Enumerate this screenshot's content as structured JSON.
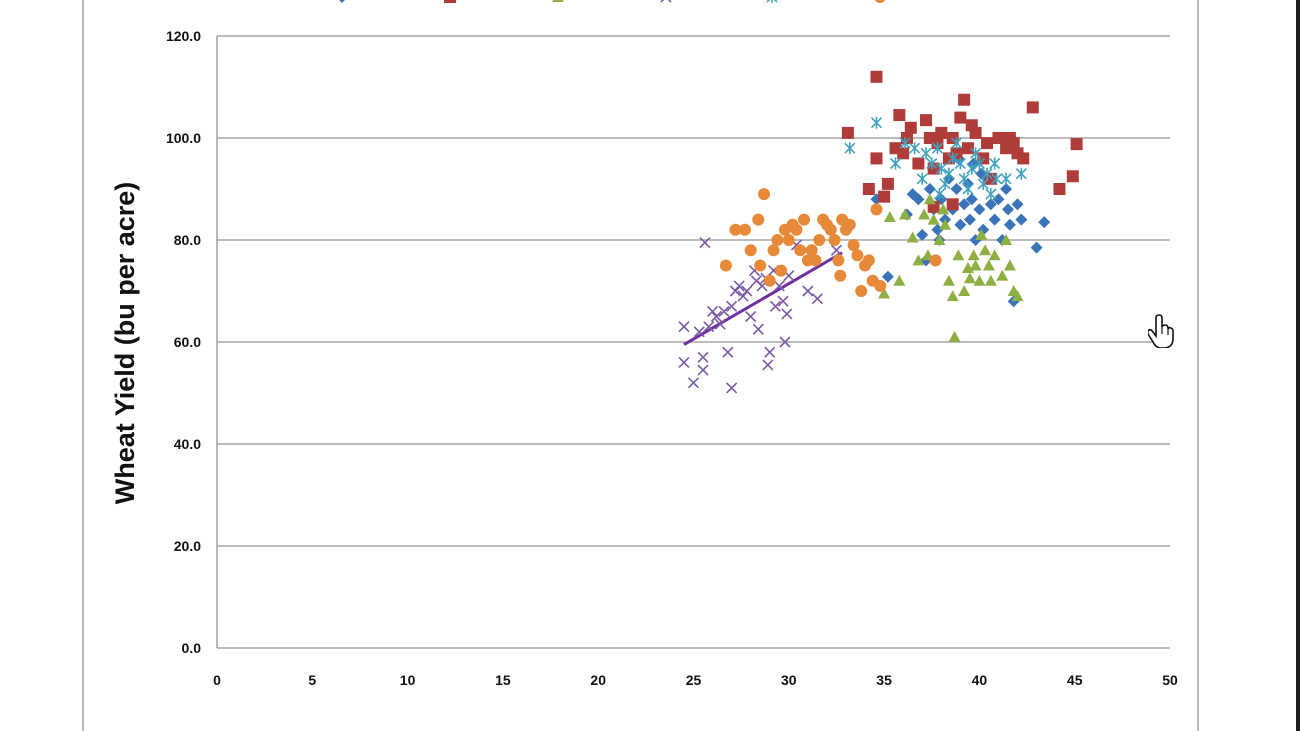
{
  "chart_data": {
    "type": "scatter",
    "xlabel": "",
    "ylabel": "Wheat Yield (bu per acre)",
    "xlim": [
      0,
      50
    ],
    "ylim": [
      0,
      120
    ],
    "x_ticks": [
      "0",
      "5",
      "10",
      "15",
      "20",
      "25",
      "30",
      "35",
      "40",
      "45",
      "50"
    ],
    "y_ticks": [
      "0.0",
      "20.0",
      "40.0",
      "60.0",
      "80.0",
      "100.0",
      "120.0"
    ],
    "grid": "horizontal",
    "legend_position": "top",
    "series": [
      {
        "name": "",
        "marker": "diamond",
        "color": "#3a73b8",
        "points": [
          [
            34.6,
            88
          ],
          [
            35.2,
            72.8
          ],
          [
            36.2,
            85
          ],
          [
            36.5,
            89
          ],
          [
            36.8,
            88
          ],
          [
            37,
            81
          ],
          [
            37.2,
            76
          ],
          [
            37.4,
            90
          ],
          [
            37.6,
            86
          ],
          [
            37.8,
            82
          ],
          [
            37.9,
            80
          ],
          [
            38,
            88
          ],
          [
            38.2,
            84
          ],
          [
            38.4,
            92
          ],
          [
            38.6,
            86
          ],
          [
            38.8,
            90
          ],
          [
            39,
            83
          ],
          [
            39.2,
            87
          ],
          [
            39.4,
            91
          ],
          [
            39.5,
            84
          ],
          [
            39.6,
            88
          ],
          [
            39.8,
            80
          ],
          [
            40,
            86
          ],
          [
            40.2,
            82
          ],
          [
            40.4,
            92
          ],
          [
            40.6,
            87
          ],
          [
            40.8,
            84
          ],
          [
            41,
            88
          ],
          [
            41.2,
            80
          ],
          [
            41.4,
            90
          ],
          [
            41.5,
            86
          ],
          [
            41.6,
            83
          ],
          [
            41.8,
            68
          ],
          [
            42,
            87
          ],
          [
            42.2,
            84
          ],
          [
            43,
            78.5
          ],
          [
            43.4,
            83.5
          ],
          [
            39.7,
            95
          ],
          [
            40.1,
            93
          ],
          [
            38.9,
            96
          ]
        ]
      },
      {
        "name": "",
        "marker": "square",
        "color": "#b03c3a",
        "points": [
          [
            33.1,
            101
          ],
          [
            34.2,
            90
          ],
          [
            34.6,
            112
          ],
          [
            34.6,
            96
          ],
          [
            35,
            88.5
          ],
          [
            35.2,
            91
          ],
          [
            35.6,
            98
          ],
          [
            35.8,
            104.5
          ],
          [
            36,
            97
          ],
          [
            36.2,
            100
          ],
          [
            36.4,
            102
          ],
          [
            36.8,
            95
          ],
          [
            37.2,
            103.5
          ],
          [
            37.4,
            100
          ],
          [
            37.6,
            94
          ],
          [
            37.8,
            99
          ],
          [
            38,
            101
          ],
          [
            38.4,
            96
          ],
          [
            38.6,
            100
          ],
          [
            38.8,
            97
          ],
          [
            39,
            104
          ],
          [
            39.2,
            107.5
          ],
          [
            39.4,
            98
          ],
          [
            39.6,
            102.5
          ],
          [
            39.8,
            101
          ],
          [
            40.2,
            96
          ],
          [
            40.4,
            99
          ],
          [
            40.6,
            92
          ],
          [
            41,
            100
          ],
          [
            41.4,
            98
          ],
          [
            41.6,
            100
          ],
          [
            41.8,
            99
          ],
          [
            42,
            97
          ],
          [
            42.3,
            96
          ],
          [
            42.8,
            106
          ],
          [
            44.2,
            90
          ],
          [
            44.9,
            92.5
          ],
          [
            45.1,
            98.8
          ],
          [
            37.6,
            86.5
          ],
          [
            38.6,
            87
          ]
        ]
      },
      {
        "name": "",
        "marker": "triangle",
        "color": "#8eb043",
        "points": [
          [
            35,
            69.5
          ],
          [
            35.3,
            84.5
          ],
          [
            35.8,
            72
          ],
          [
            36.1,
            85
          ],
          [
            36.5,
            80.5
          ],
          [
            36.8,
            76
          ],
          [
            37.1,
            85
          ],
          [
            37.3,
            77
          ],
          [
            37.6,
            84
          ],
          [
            37.9,
            80
          ],
          [
            38.2,
            83
          ],
          [
            38.4,
            72
          ],
          [
            38.6,
            69
          ],
          [
            38.7,
            61
          ],
          [
            38.9,
            77
          ],
          [
            39.2,
            70
          ],
          [
            39.4,
            74.5
          ],
          [
            39.5,
            72.5
          ],
          [
            39.7,
            77
          ],
          [
            39.8,
            75
          ],
          [
            40,
            72
          ],
          [
            40.1,
            81
          ],
          [
            40.3,
            78
          ],
          [
            40.5,
            75
          ],
          [
            40.6,
            72
          ],
          [
            40.8,
            77
          ],
          [
            41.2,
            73
          ],
          [
            41.4,
            80
          ],
          [
            41.6,
            75
          ],
          [
            41.8,
            70
          ],
          [
            42,
            69
          ],
          [
            38.1,
            86
          ],
          [
            37.4,
            88
          ]
        ]
      },
      {
        "name": "",
        "marker": "x",
        "color": "#7b5aa6",
        "points": [
          [
            24.5,
            63
          ],
          [
            24.5,
            56
          ],
          [
            25,
            52
          ],
          [
            25.3,
            62
          ],
          [
            25.5,
            57
          ],
          [
            25.5,
            54.5
          ],
          [
            25.6,
            79.5
          ],
          [
            25.8,
            63
          ],
          [
            26,
            66
          ],
          [
            26.2,
            65
          ],
          [
            26.4,
            63.5
          ],
          [
            26.6,
            66
          ],
          [
            26.8,
            58
          ],
          [
            27,
            67
          ],
          [
            27,
            51
          ],
          [
            27.2,
            70
          ],
          [
            27.4,
            71
          ],
          [
            27.6,
            69
          ],
          [
            27.8,
            70
          ],
          [
            28,
            65
          ],
          [
            28.2,
            74
          ],
          [
            28.3,
            72
          ],
          [
            28.4,
            62.5
          ],
          [
            28.6,
            71
          ],
          [
            28.8,
            72.5
          ],
          [
            28.9,
            55.5
          ],
          [
            29,
            58
          ],
          [
            29.2,
            74
          ],
          [
            29.3,
            67
          ],
          [
            29.5,
            71
          ],
          [
            29.7,
            68
          ],
          [
            29.8,
            60
          ],
          [
            29.9,
            65.5
          ],
          [
            30,
            73
          ],
          [
            30.4,
            79
          ],
          [
            31,
            70
          ],
          [
            31.5,
            68.5
          ],
          [
            32.5,
            78
          ]
        ]
      },
      {
        "name": "",
        "marker": "asterisk",
        "color": "#3fa3c0",
        "points": [
          [
            33.2,
            98
          ],
          [
            34.6,
            103
          ],
          [
            35.6,
            95
          ],
          [
            36.1,
            99
          ],
          [
            36.6,
            98
          ],
          [
            37,
            92
          ],
          [
            37.2,
            97
          ],
          [
            37.5,
            95
          ],
          [
            37.8,
            98
          ],
          [
            38,
            94
          ],
          [
            38.2,
            91
          ],
          [
            38.4,
            93
          ],
          [
            38.6,
            96
          ],
          [
            38.8,
            99
          ],
          [
            39,
            95
          ],
          [
            39.2,
            92
          ],
          [
            39.4,
            90
          ],
          [
            39.6,
            94
          ],
          [
            39.8,
            97
          ],
          [
            40,
            95
          ],
          [
            40.2,
            91
          ],
          [
            40.4,
            93
          ],
          [
            40.6,
            89
          ],
          [
            40.8,
            95
          ],
          [
            41.4,
            92
          ],
          [
            42.2,
            93
          ],
          [
            37.9,
            89
          ],
          [
            40.9,
            92
          ]
        ]
      },
      {
        "name": "",
        "marker": "circle",
        "color": "#e68a3a",
        "points": [
          [
            26.7,
            75
          ],
          [
            27.2,
            82
          ],
          [
            27.7,
            82
          ],
          [
            28,
            78
          ],
          [
            28.4,
            84
          ],
          [
            28.5,
            75
          ],
          [
            28.7,
            89
          ],
          [
            29,
            72
          ],
          [
            29.2,
            78
          ],
          [
            29.4,
            80
          ],
          [
            29.6,
            74
          ],
          [
            29.8,
            82
          ],
          [
            30,
            80
          ],
          [
            30.2,
            83
          ],
          [
            30.4,
            82
          ],
          [
            30.6,
            78
          ],
          [
            30.8,
            84
          ],
          [
            31,
            76
          ],
          [
            31.2,
            78
          ],
          [
            31.4,
            76
          ],
          [
            31.6,
            80
          ],
          [
            31.8,
            84
          ],
          [
            32,
            83
          ],
          [
            32.2,
            82
          ],
          [
            32.4,
            80
          ],
          [
            32.6,
            76
          ],
          [
            32.7,
            73
          ],
          [
            32.8,
            84
          ],
          [
            33,
            82
          ],
          [
            33.2,
            83
          ],
          [
            33.4,
            79
          ],
          [
            33.6,
            77
          ],
          [
            33.8,
            70
          ],
          [
            34,
            75
          ],
          [
            34.2,
            76
          ],
          [
            34.4,
            72
          ],
          [
            34.6,
            86
          ],
          [
            34.8,
            71
          ],
          [
            37.7,
            76
          ]
        ]
      }
    ],
    "trendline": {
      "color": "#7030a0",
      "points": [
        [
          24.5,
          59.5
        ],
        [
          32.8,
          77.5
        ]
      ]
    }
  }
}
